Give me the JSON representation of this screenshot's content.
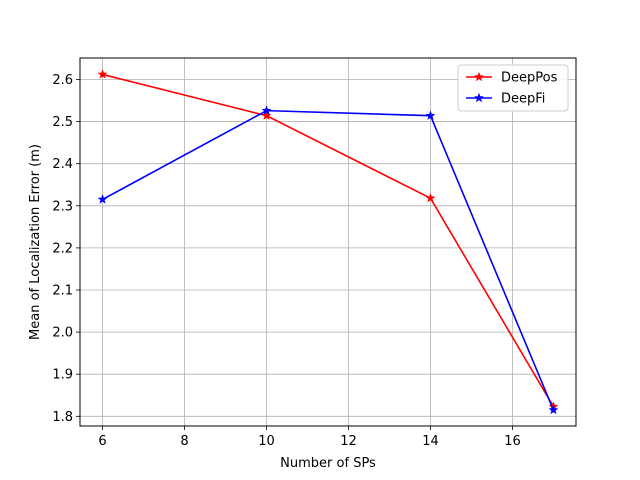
{
  "chart_data": {
    "type": "line",
    "xlabel": "Number of SPs",
    "ylabel": "Mean of Localization Error (m)",
    "xlim": [
      5.45,
      17.55
    ],
    "ylim": [
      1.777,
      2.651
    ],
    "xticks": [
      6,
      8,
      10,
      12,
      14,
      16
    ],
    "yticks": [
      1.8,
      1.9,
      2.0,
      2.1,
      2.2,
      2.3,
      2.4,
      2.5,
      2.6
    ],
    "grid": true,
    "legend_position": "top-right",
    "series": [
      {
        "name": "DeepPos",
        "color": "#ff0000",
        "marker": "star",
        "x": [
          6,
          10,
          14,
          17
        ],
        "y": [
          2.612,
          2.514,
          2.318,
          1.823
        ]
      },
      {
        "name": "DeepFi",
        "color": "#0000ff",
        "marker": "star",
        "x": [
          6,
          10,
          14,
          17
        ],
        "y": [
          2.315,
          2.526,
          2.514,
          1.815
        ]
      }
    ]
  }
}
